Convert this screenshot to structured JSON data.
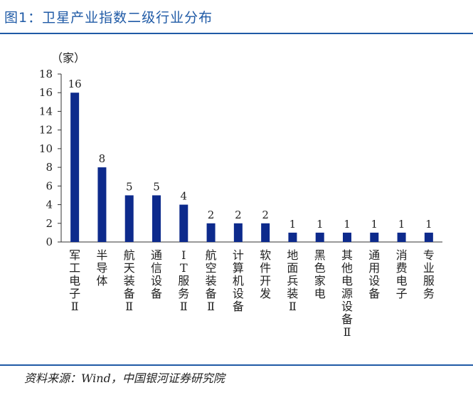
{
  "title": "图1：卫星产业指数二级行业分布",
  "source": "资料来源：Wind，中国银河证券研究院",
  "chart_data": {
    "type": "bar",
    "unit_label": "（家）",
    "categories": [
      "军工电子Ⅱ",
      "半导体",
      "航天装备Ⅱ",
      "通信设备",
      "IT服务Ⅱ",
      "航空装备Ⅱ",
      "计算机设备",
      "软件开发",
      "地面兵装Ⅱ",
      "黑色家电",
      "其他电源设备Ⅱ",
      "通用设备",
      "消费电子",
      "专业服务"
    ],
    "values": [
      16,
      8,
      5,
      5,
      4,
      2,
      2,
      2,
      1,
      1,
      1,
      1,
      1,
      1
    ],
    "yticks": [
      0,
      2,
      4,
      6,
      8,
      10,
      12,
      14,
      16,
      18
    ],
    "ylim": [
      0,
      18
    ],
    "bar_color": "#0d2a8c",
    "grid": false
  }
}
